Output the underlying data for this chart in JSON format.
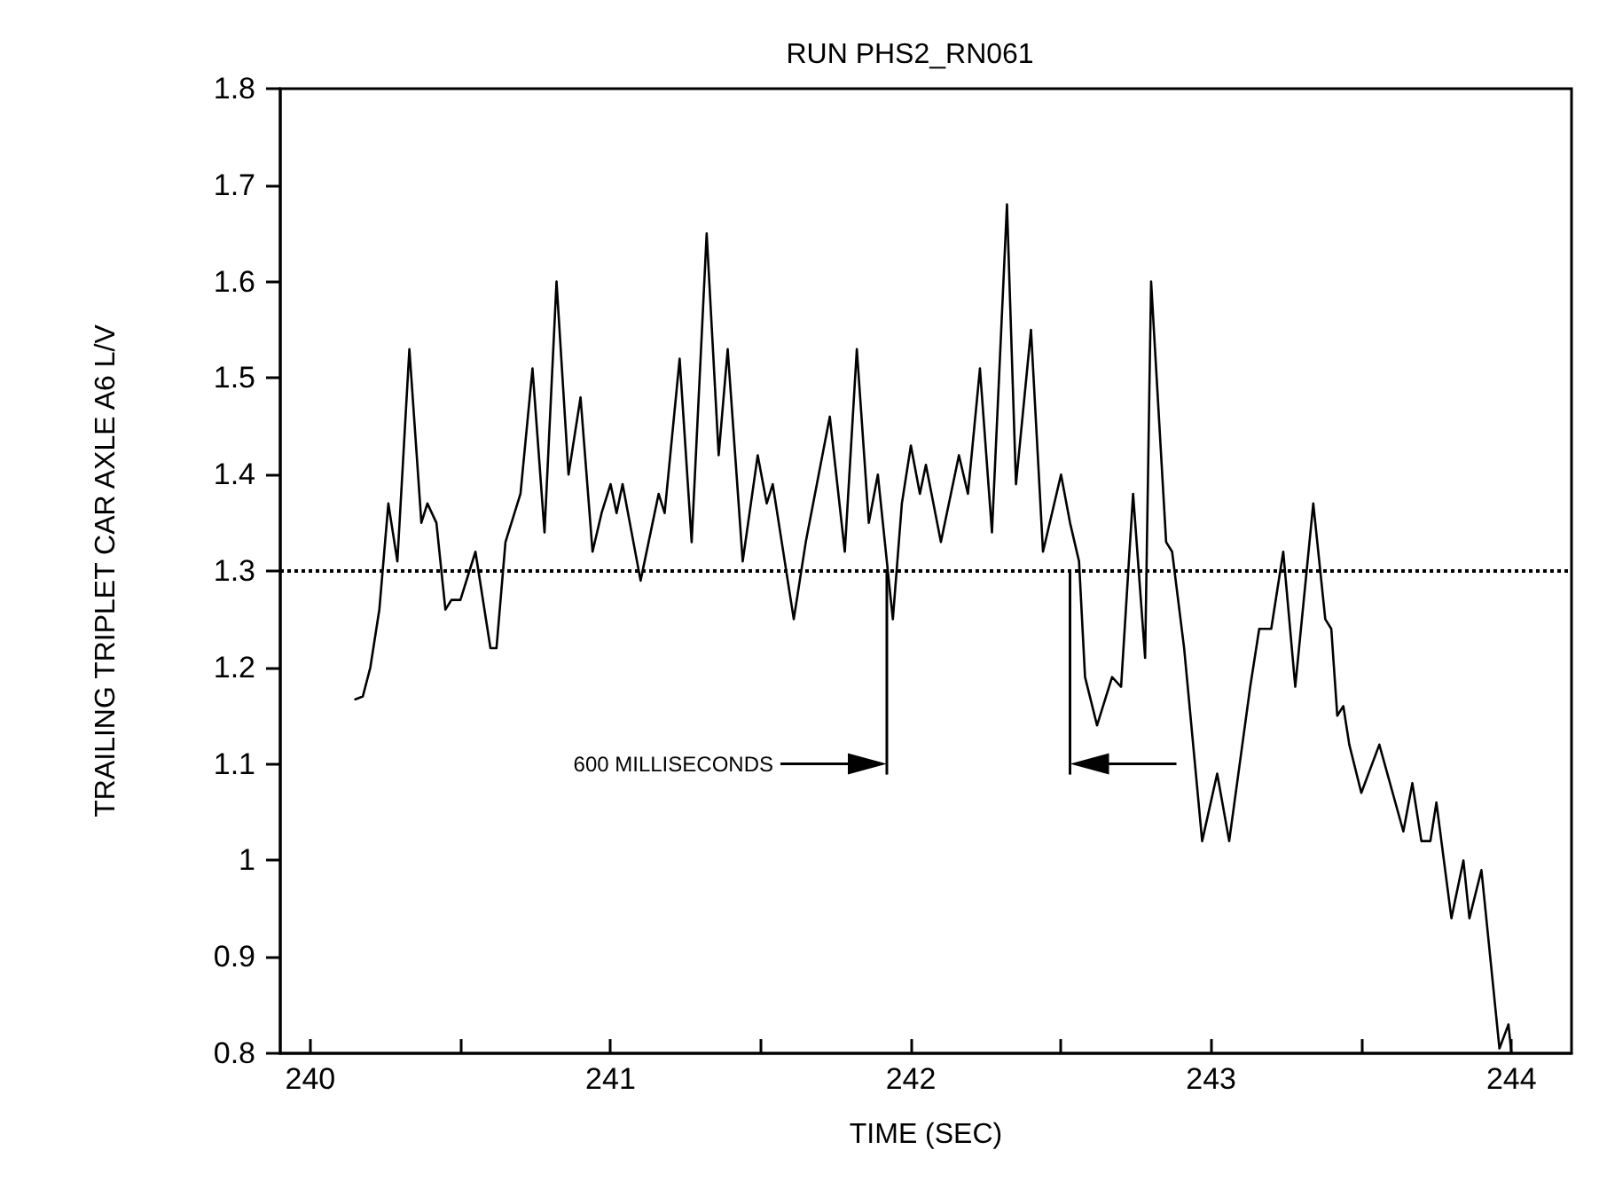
{
  "chart_data": {
    "type": "line",
    "title": "RUN PHS2_RN061",
    "xlabel": "TIME (SEC)",
    "ylabel": "TRAILING TRIPLET CAR AXLE A6 L/V",
    "x": [
      240.15,
      240.175,
      240.2,
      240.23,
      240.26,
      240.29,
      240.33,
      240.37,
      240.39,
      240.42,
      240.45,
      240.47,
      240.5,
      240.55,
      240.6,
      240.62,
      240.65,
      240.7,
      240.74,
      240.78,
      240.82,
      240.86,
      240.9,
      240.94,
      240.97,
      241,
      241.02,
      241.04,
      241.1,
      241.16,
      241.18,
      241.23,
      241.27,
      241.32,
      241.36,
      241.39,
      241.44,
      241.49,
      241.52,
      241.54,
      241.61,
      241.65,
      241.73,
      241.78,
      241.82,
      241.86,
      241.89,
      241.94,
      241.97,
      242,
      242.03,
      242.05,
      242.1,
      242.16,
      242.19,
      242.23,
      242.27,
      242.32,
      242.35,
      242.4,
      242.44,
      242.5,
      242.53,
      242.56,
      242.58,
      242.62,
      242.67,
      242.7,
      242.74,
      242.78,
      242.8,
      242.85,
      242.87,
      242.91,
      242.97,
      243.02,
      243.06,
      243.13,
      243.16,
      243.2,
      243.24,
      243.28,
      243.34,
      243.38,
      243.4,
      243.42,
      243.44,
      243.46,
      243.5,
      243.56,
      243.64,
      243.67,
      243.7,
      243.73,
      243.75,
      243.8,
      243.84,
      243.86,
      243.9,
      243.96,
      243.99,
      244
    ],
    "series": [
      {
        "color": "#000000",
        "values": [
          1.167,
          1.17,
          1.2,
          1.26,
          1.37,
          1.31,
          1.53,
          1.35,
          1.37,
          1.35,
          1.26,
          1.27,
          1.27,
          1.32,
          1.22,
          1.22,
          1.33,
          1.38,
          1.51,
          1.34,
          1.6,
          1.4,
          1.48,
          1.32,
          1.36,
          1.39,
          1.36,
          1.39,
          1.29,
          1.38,
          1.36,
          1.52,
          1.33,
          1.65,
          1.42,
          1.53,
          1.31,
          1.42,
          1.37,
          1.39,
          1.25,
          1.33,
          1.46,
          1.32,
          1.53,
          1.35,
          1.4,
          1.25,
          1.37,
          1.43,
          1.38,
          1.41,
          1.33,
          1.42,
          1.38,
          1.51,
          1.34,
          1.68,
          1.39,
          1.55,
          1.32,
          1.4,
          1.35,
          1.31,
          1.19,
          1.14,
          1.19,
          1.18,
          1.38,
          1.21,
          1.6,
          1.33,
          1.32,
          1.22,
          1.02,
          1.09,
          1.02,
          1.18,
          1.24,
          1.24,
          1.32,
          1.18,
          1.37,
          1.25,
          1.24,
          1.15,
          1.16,
          1.12,
          1.07,
          1.12,
          1.03,
          1.08,
          1.02,
          1.02,
          1.06,
          0.94,
          1,
          0.94,
          0.99,
          0.805,
          0.83,
          0.8
        ]
      }
    ],
    "xlim": [
      239.9,
      244.2
    ],
    "xticks": [
      240,
      {
        "value": 240.5,
        "label": null
      },
      241,
      {
        "value": 241.5,
        "label": null
      },
      242,
      {
        "value": 242.5,
        "label": null
      },
      243,
      {
        "value": 243.5,
        "label": null
      },
      244
    ],
    "ylim": [
      0.8,
      1.8
    ],
    "yticks": [
      0.8,
      0.9,
      1,
      1.1,
      1.2,
      1.3,
      1.4,
      1.5,
      1.6,
      1.7,
      1.8
    ],
    "ref_lines": [
      {
        "axis": "y",
        "value": 1.3,
        "line_style": "dotted",
        "color": "#000000"
      },
      {
        "axis": "x",
        "value": 241.92,
        "line_style": "solid",
        "color": "#000000"
      },
      {
        "axis": "x",
        "value": 242.53,
        "line_style": "solid",
        "color": "#000000"
      }
    ],
    "annotations": [
      "600 MILLISECONDS"
    ],
    "grid": false,
    "marker": "none",
    "line_style": "solid"
  }
}
